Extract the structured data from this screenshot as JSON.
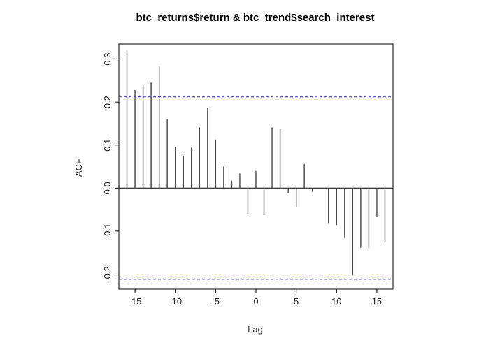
{
  "chart_data": {
    "type": "bar",
    "title": "btc_returns$return & btc_trend$search_interest",
    "xlabel": "Lag",
    "ylabel": "ACF",
    "xlim": [
      -17,
      17
    ],
    "ylim": [
      -0.235,
      0.335
    ],
    "x_ticks": [
      -15,
      -10,
      -5,
      0,
      5,
      10,
      15
    ],
    "x_tick_labels": [
      "-15",
      "-10",
      "-5",
      "0",
      "5",
      "10",
      "15"
    ],
    "y_ticks": [
      -0.2,
      -0.1,
      0.0,
      0.1,
      0.2,
      0.3
    ],
    "y_tick_labels": [
      "-0.2",
      "-0.1",
      "0.0",
      "0.1",
      "0.2",
      "0.3"
    ],
    "confidence_bounds": [
      0.212,
      -0.212
    ],
    "colors": {
      "bars": "#444444",
      "ci_line": "#3333cc",
      "zero_line": "#000000",
      "frame": "#000000"
    },
    "lags": [
      -16,
      -15,
      -14,
      -13,
      -12,
      -11,
      -10,
      -9,
      -8,
      -7,
      -6,
      -5,
      -4,
      -3,
      -2,
      -1,
      0,
      1,
      2,
      3,
      4,
      5,
      6,
      7,
      8,
      9,
      10,
      11,
      12,
      13,
      14,
      15,
      16
    ],
    "values": [
      0.318,
      0.228,
      0.24,
      0.245,
      0.282,
      0.16,
      0.096,
      0.075,
      0.094,
      0.141,
      0.187,
      0.113,
      0.05,
      0.017,
      0.034,
      -0.06,
      0.04,
      -0.063,
      0.141,
      0.138,
      -0.012,
      -0.043,
      0.056,
      -0.009,
      0.0,
      -0.083,
      -0.086,
      -0.116,
      -0.203,
      -0.139,
      -0.14,
      -0.068,
      -0.127
    ]
  }
}
